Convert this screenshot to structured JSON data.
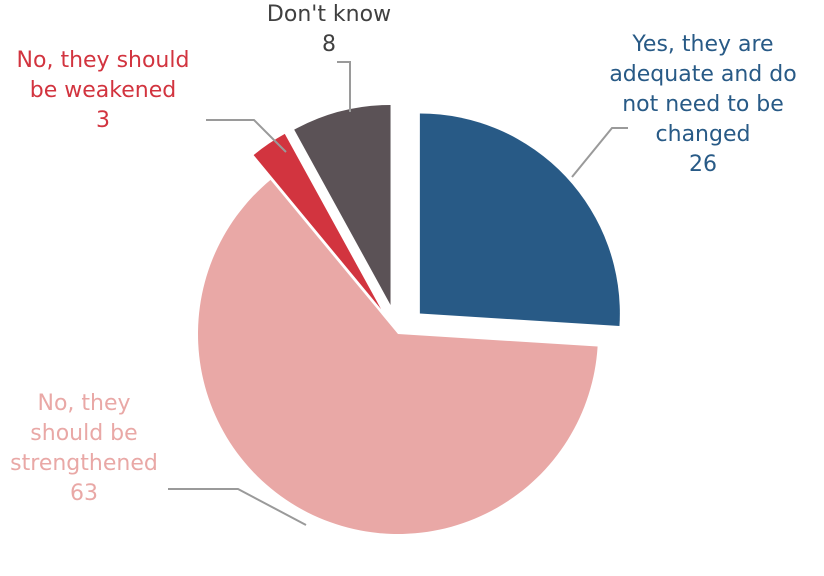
{
  "chart_data": {
    "type": "pie",
    "exploded": true,
    "slices": [
      {
        "name": "Yes, they are adequate and do not need to be changed",
        "lines": [
          "Yes, they are",
          "adequate and do",
          "not need to be",
          "changed"
        ],
        "value": 26,
        "value_label": "26",
        "color": "#285a86"
      },
      {
        "name": "No, they should be strengthened",
        "lines": [
          "No, they",
          "should be",
          "strengthened"
        ],
        "value": 63,
        "value_label": "63",
        "color": "#e9a8a6"
      },
      {
        "name": "No, they should be weakened",
        "lines": [
          "No, they should",
          "be weakened"
        ],
        "value": 3,
        "value_label": "3",
        "color": "#d2343f"
      },
      {
        "name": "Don't know",
        "lines": [
          "Don't know"
        ],
        "value": 8,
        "value_label": "8",
        "color": "#5b5256"
      }
    ],
    "label_colors": [
      "#285a86",
      "#e9a8a6",
      "#d2343f",
      "#404040"
    ],
    "leader_line_color": "#9a9a9a"
  }
}
